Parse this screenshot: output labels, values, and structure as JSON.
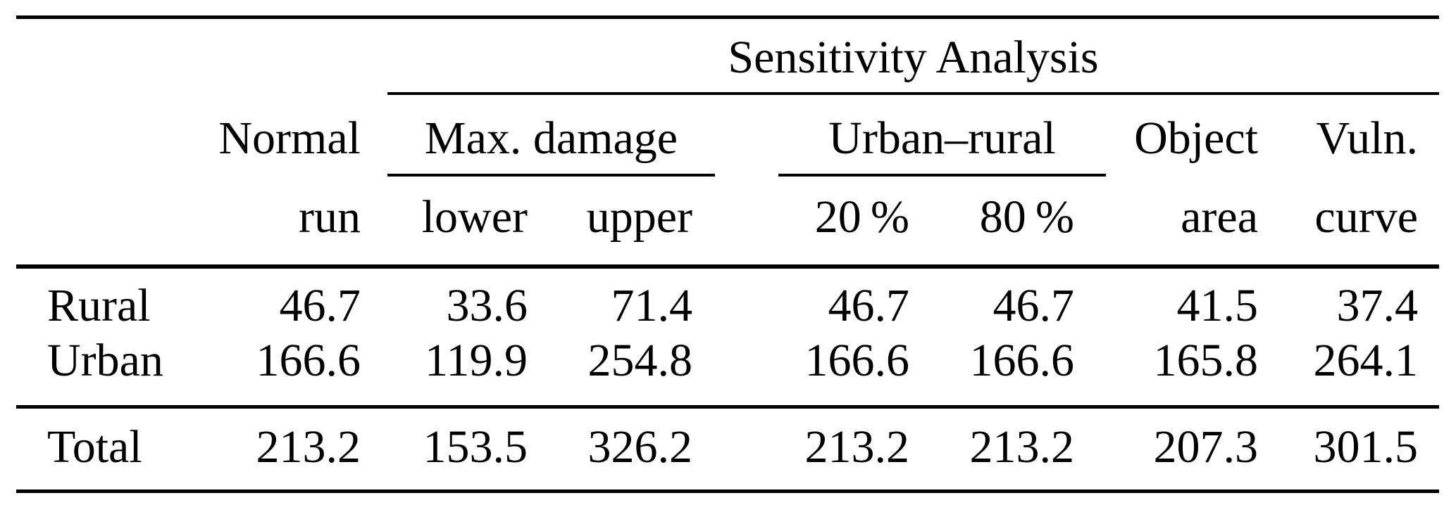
{
  "page": {
    "background": "#ffffff",
    "text_color": "#000000",
    "rule_color": "#000000"
  },
  "table": {
    "spanner": "Sensitivity Analysis",
    "groups": [
      {
        "label": "Max. damage"
      },
      {
        "label": "Urban–rural"
      }
    ],
    "column_headers": {
      "normal": {
        "line1": "Normal",
        "line2": "run"
      },
      "max_damage_lower": "lower",
      "max_damage_upper": "upper",
      "urban_rural_20": "20 %",
      "urban_rural_80": "80 %",
      "object": {
        "line1": "Object",
        "line2": "area"
      },
      "vuln": {
        "line1": "Vuln.",
        "line2": "curve"
      }
    },
    "rows": [
      {
        "label": "Rural",
        "values": [
          "46.7",
          "33.6",
          "71.4",
          "46.7",
          "46.7",
          "41.5",
          "37.4"
        ]
      },
      {
        "label": "Urban",
        "values": [
          "166.6",
          "119.9",
          "254.8",
          "166.6",
          "166.6",
          "165.8",
          "264.1"
        ]
      }
    ],
    "total": {
      "label": "Total",
      "values": [
        "213.2",
        "153.5",
        "326.2",
        "213.2",
        "213.2",
        "207.3",
        "301.5"
      ]
    }
  }
}
